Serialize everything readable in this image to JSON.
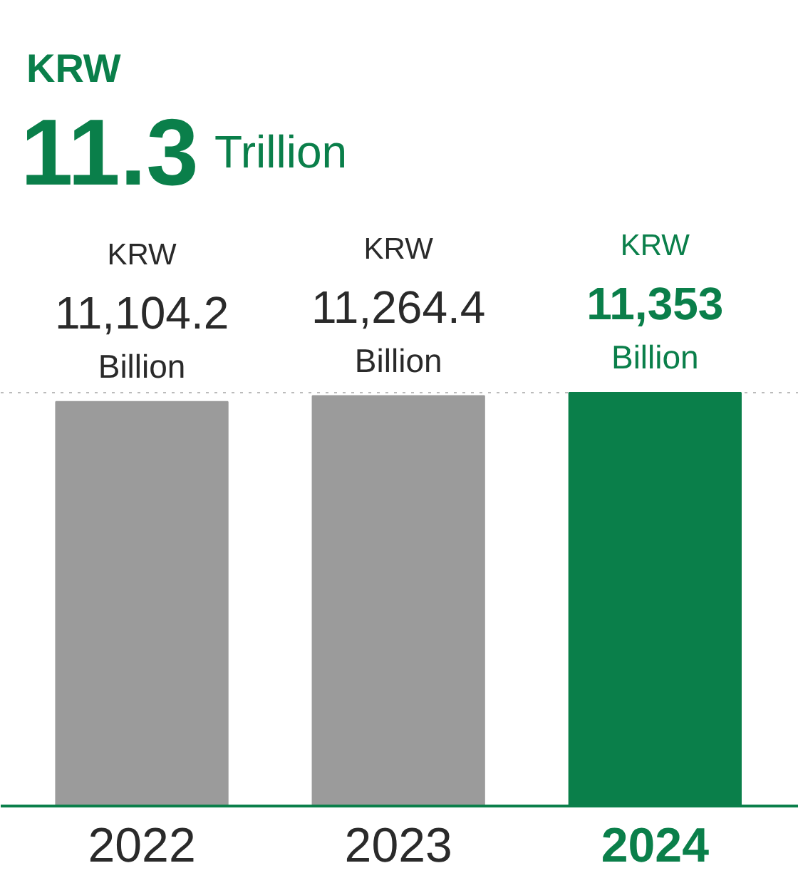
{
  "chart_data": {
    "type": "bar",
    "title": "KRW",
    "subtitle": "11.3 Trillion",
    "categories": [
      "2022",
      "2023",
      "2024"
    ],
    "values": [
      11104.2,
      11264.4,
      11353
    ],
    "colors": [
      "#9b9b9b",
      "#9b9b9b",
      "#0a7f4a"
    ],
    "value_labels": [
      "KRW\n11,104.2\nBillion",
      "KRW\n11,264.4\nBillion",
      "KRW\n11,353\nBillion"
    ],
    "ref_lines": [
      {
        "axis": "y",
        "value": 11353,
        "color": "#bbbbbb",
        "line_style": "dotted"
      }
    ]
  }
}
